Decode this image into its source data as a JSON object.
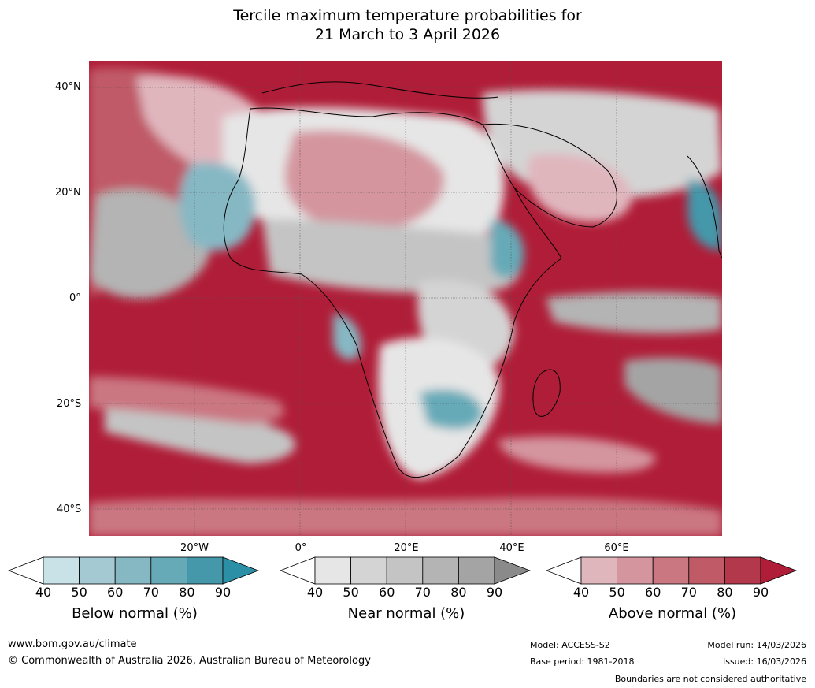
{
  "title": {
    "line1": "Tercile maximum temperature probabilities for",
    "line2": "21 March to 3 April 2026"
  },
  "map": {
    "lat_labels": [
      "40°N",
      "20°N",
      "0°",
      "20°S",
      "40°S"
    ],
    "lon_labels": [
      "20°W",
      "0°",
      "20°E",
      "40°E",
      "60°E"
    ]
  },
  "colorbars": [
    {
      "label": "Below normal (%)",
      "ticks": [
        "40",
        "50",
        "60",
        "70",
        "80",
        "90"
      ],
      "colors": [
        "#ffffff",
        "#c9e2e8",
        "#a5c9d2",
        "#86b8c4",
        "#66aab8",
        "#4597aa",
        "#2b8fa5"
      ]
    },
    {
      "label": "Near normal (%)",
      "ticks": [
        "40",
        "50",
        "60",
        "70",
        "80",
        "90"
      ],
      "colors": [
        "#ffffff",
        "#e6e6e6",
        "#d4d4d4",
        "#c4c4c4",
        "#b4b4b4",
        "#a4a4a4",
        "#8a8a8a"
      ]
    },
    {
      "label": "Above normal (%)",
      "ticks": [
        "40",
        "50",
        "60",
        "70",
        "80",
        "90"
      ],
      "colors": [
        "#ffffff",
        "#e0b6bd",
        "#d4959f",
        "#cb7782",
        "#c05a67",
        "#b4384c",
        "#b01d38"
      ]
    }
  ],
  "footer": {
    "website": "www.bom.gov.au/climate",
    "copyright": "© Commonwealth of Australia 2026, Australian Bureau of Meteorology",
    "model": "Model: ACCESS-S2",
    "base_period": "Base period: 1981-2018",
    "model_run": "Model run: 14/03/2026",
    "issued": "Issued: 16/03/2026",
    "disclaimer": "Boundaries are not considered authoritative"
  }
}
